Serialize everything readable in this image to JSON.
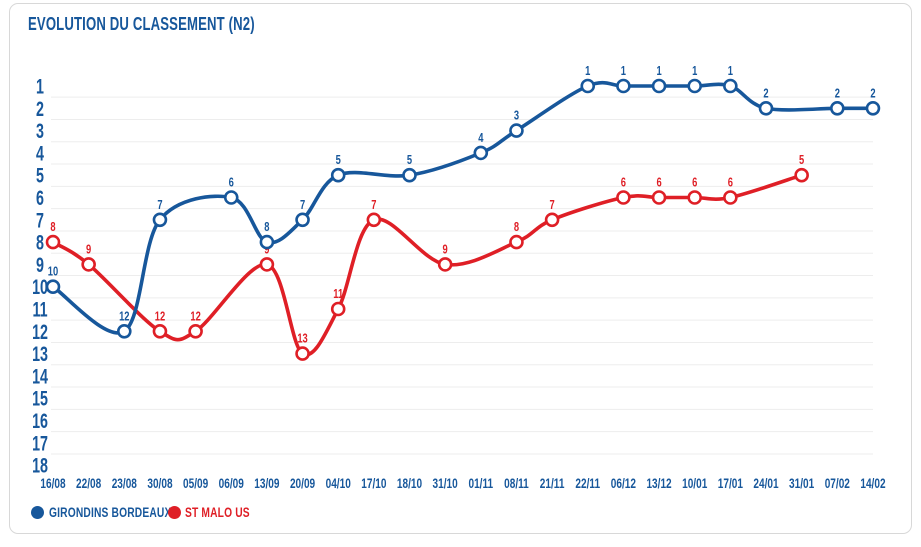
{
  "chart_data": {
    "type": "line",
    "title": "EVOLUTION DU CLASSEMENT (N2)",
    "categories": [
      "16/08",
      "22/08",
      "23/08",
      "30/08",
      "05/09",
      "06/09",
      "13/09",
      "20/09",
      "04/10",
      "17/10",
      "18/10",
      "31/10",
      "01/11",
      "08/11",
      "21/11",
      "22/11",
      "06/12",
      "13/12",
      "10/01",
      "17/01",
      "24/01",
      "31/01",
      "07/02",
      "14/02"
    ],
    "y_axis": {
      "inverted": true,
      "min": 1,
      "max": 18,
      "ticks": [
        1,
        2,
        3,
        4,
        5,
        6,
        7,
        8,
        9,
        10,
        11,
        12,
        13,
        14,
        15,
        16,
        17,
        18
      ]
    },
    "series": [
      {
        "name": "GIRONDINS BORDEAUX",
        "color": "#17579b",
        "values": [
          10,
          null,
          12,
          7,
          null,
          6,
          8,
          7,
          5,
          null,
          5,
          null,
          4,
          3,
          null,
          1,
          1,
          1,
          1,
          1,
          2,
          null,
          2,
          2
        ]
      },
      {
        "name": "ST MALO US",
        "color": "#df1f26",
        "values": [
          8,
          9,
          null,
          12,
          12,
          null,
          9,
          13,
          11,
          7,
          null,
          9,
          null,
          8,
          7,
          null,
          6,
          6,
          6,
          6,
          null,
          5,
          null,
          null
        ]
      }
    ],
    "grid": "horizontal-only",
    "legend_position": "bottom-left",
    "marker_style": "open-circle",
    "value_labels": "above-points",
    "colors": {
      "axis_text": "#17579b",
      "gridline": "#ededed",
      "marker_fill": "#ffffff"
    }
  }
}
